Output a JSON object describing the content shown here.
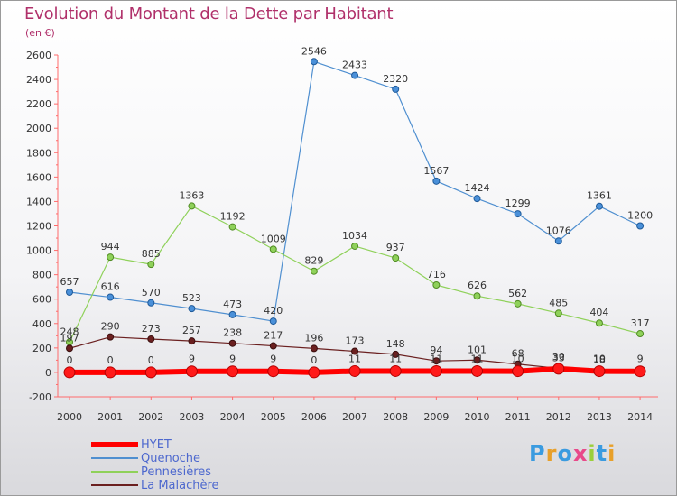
{
  "header": {
    "title": "Evolution du Montant de la Dette par Habitant",
    "subtitle": "(en €)"
  },
  "colors": {
    "title": "#b0306a",
    "HYET": "#ff0000",
    "Quenoche": "#4f8fd0",
    "Pennesières": "#8fd15a",
    "La Malachère": "#6b2020",
    "legend_text": "#4d68ce"
  },
  "chart_data": {
    "type": "line",
    "title": "Evolution du Montant de la Dette par Habitant",
    "subtitle": "(en €)",
    "xlabel": "",
    "ylabel": "",
    "x": [
      "2000",
      "2001",
      "2002",
      "2003",
      "2004",
      "2005",
      "2006",
      "2007",
      "2008",
      "2009",
      "2010",
      "2011",
      "2012",
      "2013",
      "2014"
    ],
    "ylim": [
      -200,
      2600
    ],
    "yticks": [
      -200,
      0,
      200,
      400,
      600,
      800,
      1000,
      1200,
      1400,
      1600,
      1800,
      2000,
      2200,
      2400,
      2600
    ],
    "grid": false,
    "legend_position": "bottom-left",
    "series": [
      {
        "name": "HYET",
        "values": [
          0,
          0,
          0,
          9,
          9,
          9,
          0,
          11,
          11,
          11,
          11,
          10,
          30,
          10,
          9
        ]
      },
      {
        "name": "Quenoche",
        "values": [
          657,
          616,
          570,
          523,
          473,
          420,
          2546,
          2433,
          2320,
          1567,
          1424,
          1299,
          1076,
          1361,
          1200
        ]
      },
      {
        "name": "Pennesières",
        "values": [
          248,
          944,
          885,
          1363,
          1192,
          1009,
          829,
          1034,
          937,
          716,
          626,
          562,
          485,
          404,
          317
        ]
      },
      {
        "name": "La Malachère",
        "values": [
          197,
          290,
          273,
          257,
          238,
          217,
          196,
          173,
          148,
          94,
          101,
          68,
          33,
          18,
          null
        ]
      }
    ]
  },
  "legend": {
    "items": [
      "HYET",
      "Quenoche",
      "Pennesières",
      "La Malachère"
    ]
  },
  "logo": {
    "letters": [
      "P",
      "r",
      "o",
      "x",
      "i",
      "t",
      "i"
    ],
    "colors": [
      "#3a9be0",
      "#e8a02a",
      "#3a9be0",
      "#e84a8a",
      "#9bcf3a",
      "#3a9be0",
      "#e8a02a"
    ]
  }
}
